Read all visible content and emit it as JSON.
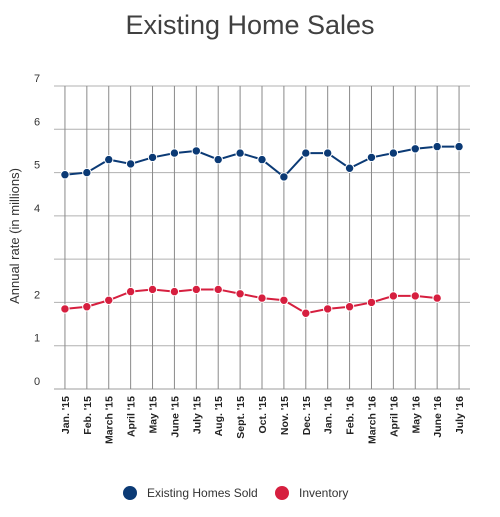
{
  "chart_data": {
    "type": "line",
    "title": "Existing Home Sales",
    "xlabel": "",
    "ylabel": "Annual rate (in millions)",
    "ylim": [
      0,
      7
    ],
    "yticks": [
      "0",
      "1",
      "2",
      "4",
      "5",
      "6",
      "7"
    ],
    "grid": true,
    "legend_position": "bottom",
    "categories": [
      "Jan. '15",
      "Feb. '15",
      "March '15",
      "April '15",
      "May '15",
      "June '15",
      "July '15",
      "Aug. '15",
      "Sept. '15",
      "Oct. '15",
      "Nov. '15",
      "Dec. '15",
      "Jan. '16",
      "Feb. '16",
      "March '16",
      "April '16",
      "May '16",
      "June '16",
      "July '16"
    ],
    "series": [
      {
        "name": "Existing Homes Sold",
        "color": "#0b3a75",
        "values": [
          4.95,
          5.0,
          5.3,
          5.2,
          5.35,
          5.45,
          5.5,
          5.3,
          5.45,
          5.3,
          4.9,
          5.45,
          5.45,
          5.1,
          5.35,
          5.45,
          5.55,
          5.6,
          5.6
        ]
      },
      {
        "name": "Inventory",
        "color": "#d61f3f",
        "values": [
          1.85,
          1.9,
          2.05,
          2.25,
          2.3,
          2.25,
          2.3,
          2.3,
          2.2,
          2.1,
          2.05,
          1.75,
          1.85,
          1.9,
          2.0,
          2.15,
          2.15,
          2.1,
          null
        ]
      }
    ]
  }
}
